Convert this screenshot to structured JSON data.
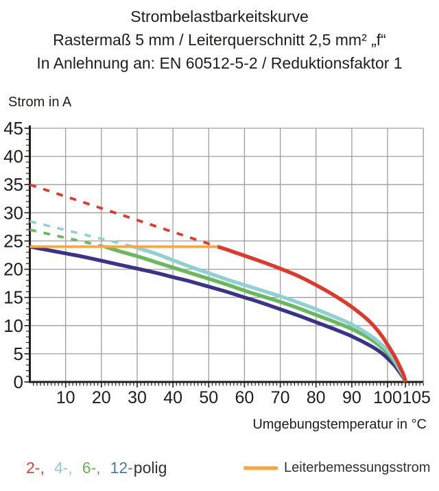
{
  "title": {
    "line1": "Strombelastbarkeitskurve",
    "line2": "Rastermaß 5 mm / Leiterquerschnitt 2,5 mm² „f“",
    "line3": "In Anlehnung an: EN 60512-5-2 / Reduktionsfaktor 1"
  },
  "legend": {
    "pole_items": [
      {
        "label": "2-,",
        "color": "#dc4437"
      },
      {
        "label": "4-,",
        "color": "#8fc9cf"
      },
      {
        "label": "6-,",
        "color": "#67b257"
      },
      {
        "label": "12-",
        "color": "#4a7ca8"
      }
    ],
    "pole_suffix": "polig",
    "reference_label": "Leiterbemessungsstrom",
    "reference_color": "#f6a844"
  },
  "chart_data": {
    "type": "line",
    "title": "Strombelastbarkeitskurve",
    "subtitle1": "Rastermaß 5 mm / Leiterquerschnitt 2,5 mm² „f“",
    "subtitle2": "In Anlehnung an: EN 60512-5-2 / Reduktionsfaktor 1",
    "xlabel": "Umgebungstemperatur in °C",
    "ylabel": "Strom in A",
    "xlim": [
      0,
      110
    ],
    "ylim": [
      0,
      45
    ],
    "x_major_ticks": [
      10,
      20,
      30,
      40,
      50,
      60,
      70,
      80,
      90,
      100,
      105
    ],
    "x_tick_offsets": [
      0,
      0,
      0,
      0,
      0,
      0,
      0,
      0,
      0,
      0,
      16
    ],
    "y_major_ticks": [
      0,
      5,
      10,
      15,
      20,
      25,
      30,
      35,
      40,
      45
    ],
    "x_minor_tick_step": 1,
    "y_minor_tick_step": 1,
    "grid": {
      "x_step": 10,
      "y_step": 5,
      "color": "#9d9d9d"
    },
    "axis_color": "#1d1d1b",
    "series": [
      {
        "name": "2-polig",
        "color": "#e0392b",
        "dashed": [
          [
            0,
            35
          ],
          [
            52.5,
            24
          ]
        ],
        "solid": [
          [
            52.5,
            24
          ],
          [
            55,
            23.5
          ],
          [
            60,
            22.4
          ],
          [
            65,
            21.3
          ],
          [
            70,
            20.1
          ],
          [
            75,
            18.8
          ],
          [
            80,
            17.2
          ],
          [
            85,
            15.4
          ],
          [
            90,
            13.3
          ],
          [
            95,
            10.7
          ],
          [
            98,
            8.5
          ],
          [
            100,
            6.6
          ],
          [
            102,
            4.5
          ],
          [
            103.5,
            2.6
          ],
          [
            104.5,
            1.2
          ],
          [
            105,
            0
          ]
        ]
      },
      {
        "name": "4-polig",
        "color": "#8fd0d3",
        "dashed": [
          [
            0,
            28.5
          ],
          [
            29,
            24
          ]
        ],
        "solid": [
          [
            29,
            24
          ],
          [
            32,
            23.4
          ],
          [
            35,
            22.8
          ],
          [
            40,
            21.6
          ],
          [
            45,
            20.4
          ],
          [
            50,
            19.3
          ],
          [
            55,
            18.2
          ],
          [
            60,
            17.2
          ],
          [
            65,
            16.2
          ],
          [
            70,
            15.2
          ],
          [
            75,
            14.1
          ],
          [
            80,
            12.9
          ],
          [
            85,
            11.6
          ],
          [
            90,
            10.2
          ],
          [
            95,
            8.3
          ],
          [
            98,
            6.8
          ],
          [
            100,
            5.6
          ],
          [
            102,
            3.9
          ],
          [
            103.5,
            2.2
          ],
          [
            104.5,
            1.0
          ],
          [
            105,
            0
          ]
        ]
      },
      {
        "name": "6-polig",
        "color": "#69b95c",
        "dashed": [
          [
            0,
            27
          ],
          [
            21,
            24
          ]
        ],
        "solid": [
          [
            21,
            24
          ],
          [
            25,
            23.2
          ],
          [
            30,
            22.3
          ],
          [
            35,
            21.3
          ],
          [
            40,
            20.3
          ],
          [
            45,
            19.3
          ],
          [
            50,
            18.3
          ],
          [
            55,
            17.3
          ],
          [
            60,
            16.2
          ],
          [
            65,
            15.2
          ],
          [
            70,
            14.2
          ],
          [
            75,
            13.1
          ],
          [
            80,
            11.9
          ],
          [
            85,
            10.7
          ],
          [
            90,
            9.4
          ],
          [
            95,
            7.7
          ],
          [
            98,
            6.3
          ],
          [
            100,
            5.1
          ],
          [
            102,
            3.5
          ],
          [
            103.5,
            2.0
          ],
          [
            104.5,
            0.9
          ],
          [
            105,
            0
          ]
        ]
      },
      {
        "name": "12-polig",
        "color": "#393489",
        "dashed": [],
        "solid": [
          [
            0,
            24
          ],
          [
            5,
            23.4
          ],
          [
            10,
            22.8
          ],
          [
            15,
            22.2
          ],
          [
            20,
            21.5
          ],
          [
            25,
            20.8
          ],
          [
            30,
            20.1
          ],
          [
            35,
            19.4
          ],
          [
            40,
            18.6
          ],
          [
            45,
            17.8
          ],
          [
            50,
            16.9
          ],
          [
            55,
            16.0
          ],
          [
            60,
            15.0
          ],
          [
            65,
            14.0
          ],
          [
            70,
            12.9
          ],
          [
            75,
            11.8
          ],
          [
            80,
            10.6
          ],
          [
            85,
            9.4
          ],
          [
            90,
            8.1
          ],
          [
            95,
            6.5
          ],
          [
            98,
            5.3
          ],
          [
            100,
            4.2
          ],
          [
            102,
            2.9
          ],
          [
            103.5,
            1.6
          ],
          [
            104.5,
            0.7
          ],
          [
            105,
            0
          ]
        ]
      }
    ],
    "reference_line": {
      "name": "Leiterbemessungsstrom",
      "y": 24,
      "x_from": 0,
      "x_to": 52.5,
      "color": "#f6a844"
    }
  }
}
